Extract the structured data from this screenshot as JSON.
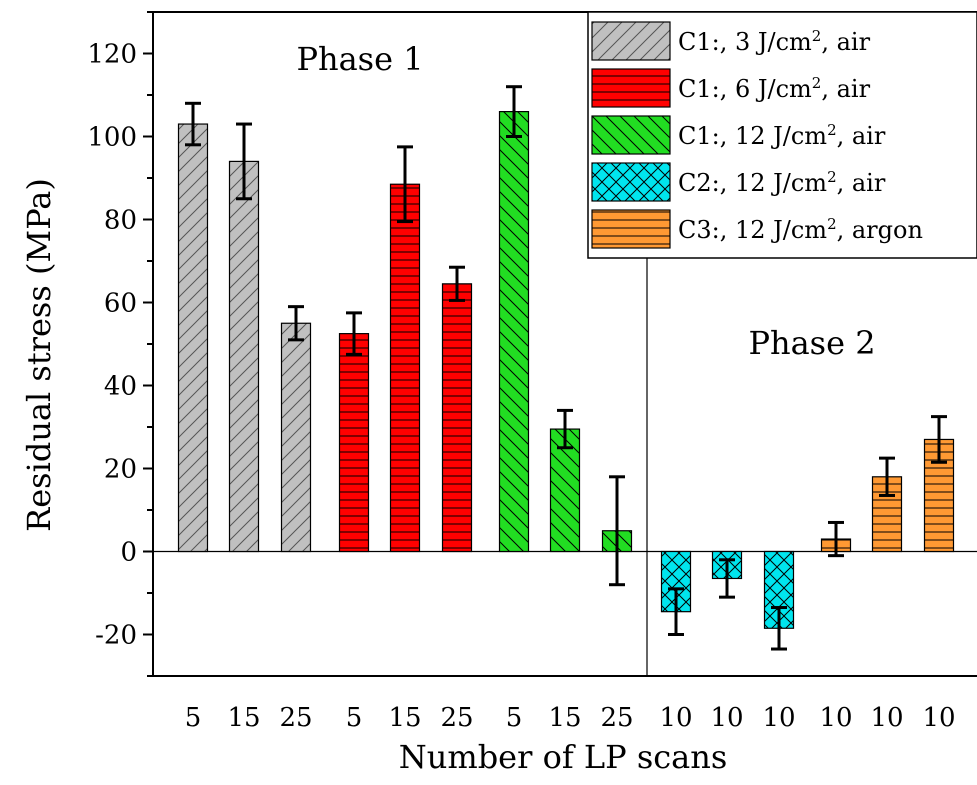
{
  "chart_data": {
    "type": "bar",
    "xlabel": "Number of LP scans",
    "ylabel": "Residual stress (MPa)",
    "ylim": [
      -30,
      130
    ],
    "yticks": [
      -20,
      0,
      20,
      40,
      60,
      80,
      100,
      120
    ],
    "yticks_labels": [
      "-20",
      "0",
      "20",
      "40",
      "60",
      "80",
      "100",
      "120"
    ],
    "grid": false,
    "legend_position": "top-right",
    "annotations": [
      "Phase 1",
      "Phase 2"
    ],
    "series": [
      {
        "name": "C1:, 3 J/cm², air",
        "label_main": "C1:, 3 J/cm",
        "label_sup": "2",
        "label_end": ", air",
        "color": "#c0c0c0",
        "pattern": "diag-up",
        "categories": [
          "5",
          "15",
          "25"
        ],
        "values": [
          103,
          94,
          55
        ],
        "errors": [
          5,
          9,
          4
        ]
      },
      {
        "name": "C1:, 6 J/cm², air",
        "label_main": "C1:, 6 J/cm",
        "label_sup": "2",
        "label_end": ", air",
        "color": "#ff0000",
        "pattern": "horizontal",
        "categories": [
          "5",
          "15",
          "25"
        ],
        "values": [
          52.5,
          88.5,
          64.5
        ],
        "errors": [
          5,
          9,
          4
        ]
      },
      {
        "name": "C1:, 12 J/cm², air",
        "label_main": "C1:, 12 J/cm",
        "label_sup": "2",
        "label_end": ", air",
        "color": "#22dd22",
        "pattern": "diag-down",
        "categories": [
          "5",
          "15",
          "25"
        ],
        "values": [
          106,
          29.5,
          5
        ],
        "errors": [
          6,
          4.5,
          13
        ]
      },
      {
        "name": "C2:, 12 J/cm², air",
        "label_main": "C2:, 12 J/cm",
        "label_sup": "2",
        "label_end": ", air",
        "color": "#00e5ee",
        "pattern": "cross",
        "categories": [
          "10",
          "10",
          "10"
        ],
        "values": [
          -14.5,
          -6.5,
          -18.5
        ],
        "errors": [
          5.5,
          4.5,
          5
        ]
      },
      {
        "name": "C3:, 12 J/cm², argon",
        "label_main": "C3:, 12 J/cm",
        "label_sup": "2",
        "label_end": ", argon",
        "color": "#ff9933",
        "pattern": "horizontal",
        "categories": [
          "10",
          "10",
          "10"
        ],
        "values": [
          3,
          18,
          27
        ],
        "errors": [
          4,
          4.5,
          5.5
        ]
      }
    ]
  }
}
